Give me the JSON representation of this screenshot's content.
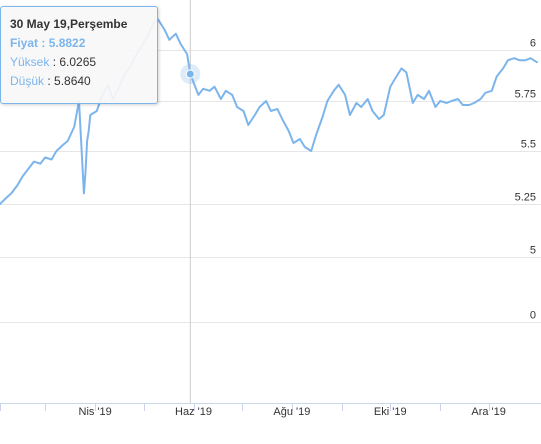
{
  "chart_data": {
    "type": "line",
    "title": "",
    "xlabel": "",
    "ylabel": "",
    "x_tick_labels": [
      "Nis '19",
      "Haz '19",
      "Ağu '19",
      "Eki '19",
      "Ara '19"
    ],
    "y_tick_labels": [
      "6",
      "5.75",
      "5.5",
      "5.25",
      "5",
      "0"
    ],
    "y_axis_position": "right",
    "grid": "horizontal",
    "legend": "none",
    "line_color": "#7cb5ec",
    "series": [
      {
        "x": [
          "2019-02-01",
          "2019-02-05",
          "2019-02-08",
          "2019-02-12",
          "2019-02-15",
          "2019-02-19",
          "2019-02-22",
          "2019-02-26",
          "2019-03-01",
          "2019-03-05",
          "2019-03-08",
          "2019-03-12",
          "2019-03-15",
          "2019-03-19",
          "2019-03-22",
          "2019-03-25",
          "2019-03-26",
          "2019-03-27",
          "2019-03-28",
          "2019-03-29",
          "2019-04-02",
          "2019-04-05",
          "2019-04-09",
          "2019-04-12",
          "2019-04-16",
          "2019-04-19",
          "2019-04-23",
          "2019-04-26",
          "2019-04-30",
          "2019-05-03",
          "2019-05-07",
          "2019-05-10",
          "2019-05-14",
          "2019-05-17",
          "2019-05-21",
          "2019-05-24",
          "2019-05-28",
          "2019-05-30",
          "2019-06-04",
          "2019-06-07",
          "2019-06-11",
          "2019-06-14",
          "2019-06-18",
          "2019-06-21",
          "2019-06-25",
          "2019-06-28",
          "2019-07-02",
          "2019-07-05",
          "2019-07-09",
          "2019-07-12",
          "2019-07-16",
          "2019-07-19",
          "2019-07-23",
          "2019-07-26",
          "2019-07-30",
          "2019-08-02",
          "2019-08-06",
          "2019-08-09",
          "2019-08-13",
          "2019-08-16",
          "2019-08-20",
          "2019-08-23",
          "2019-08-27",
          "2019-08-30",
          "2019-09-03",
          "2019-09-06",
          "2019-09-10",
          "2019-09-13",
          "2019-09-17",
          "2019-09-20",
          "2019-09-24",
          "2019-09-27",
          "2019-10-01",
          "2019-10-04",
          "2019-10-08",
          "2019-10-11",
          "2019-10-15",
          "2019-10-18",
          "2019-10-22",
          "2019-10-25",
          "2019-10-29",
          "2019-11-01",
          "2019-11-05",
          "2019-11-08",
          "2019-11-12",
          "2019-11-15",
          "2019-11-19",
          "2019-11-22",
          "2019-11-26",
          "2019-11-29",
          "2019-12-03",
          "2019-12-06",
          "2019-12-10",
          "2019-12-13",
          "2019-12-17",
          "2019-12-20",
          "2019-12-24",
          "2019-12-27",
          "2019-12-31"
        ],
        "y": [
          5.25,
          5.28,
          5.3,
          5.34,
          5.38,
          5.42,
          5.45,
          5.44,
          5.47,
          5.46,
          5.5,
          5.53,
          5.55,
          5.62,
          5.75,
          5.3,
          5.4,
          5.55,
          5.6,
          5.68,
          5.7,
          5.77,
          5.83,
          5.76,
          5.82,
          5.88,
          5.92,
          5.97,
          6.02,
          6.06,
          6.13,
          6.15,
          6.1,
          6.05,
          6.08,
          6.03,
          5.98,
          5.8822,
          5.78,
          5.81,
          5.8,
          5.82,
          5.76,
          5.8,
          5.78,
          5.72,
          5.7,
          5.63,
          5.68,
          5.72,
          5.75,
          5.7,
          5.71,
          5.66,
          5.6,
          5.54,
          5.56,
          5.52,
          5.5,
          5.58,
          5.67,
          5.75,
          5.8,
          5.83,
          5.78,
          5.68,
          5.74,
          5.72,
          5.76,
          5.7,
          5.66,
          5.68,
          5.82,
          5.86,
          5.91,
          5.89,
          5.74,
          5.78,
          5.76,
          5.8,
          5.72,
          5.75,
          5.74,
          5.75,
          5.76,
          5.73,
          5.73,
          5.74,
          5.76,
          5.79,
          5.8,
          5.87,
          5.91,
          5.95,
          5.96,
          5.95,
          5.95,
          5.96,
          5.94
        ]
      }
    ],
    "highlight": {
      "x": "2019-05-30",
      "y": 5.8822
    }
  },
  "tooltip": {
    "title": "30 May 19,Perşembe",
    "price_label": "Fiyat",
    "price_value": "5.8822",
    "high_label": "Yüksek",
    "high_value": "6.0265",
    "low_label": "Düşük",
    "low_value": "5.8640"
  }
}
